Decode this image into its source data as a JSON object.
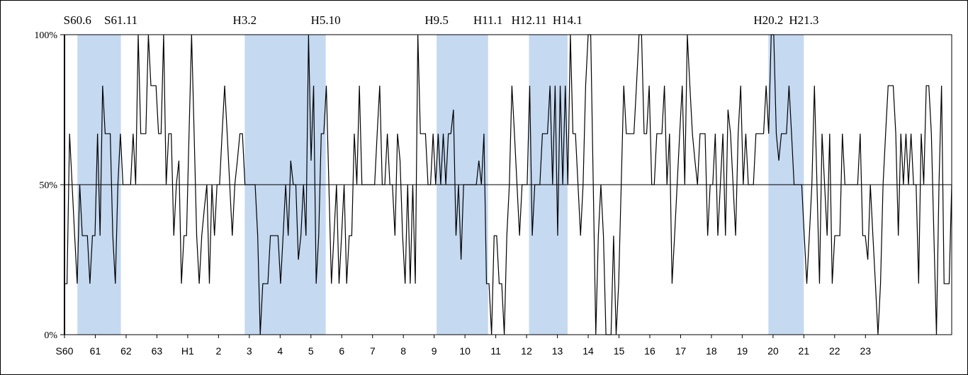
{
  "chart_data": {
    "type": "line",
    "title": "",
    "xlabel": "",
    "ylabel": "",
    "ylim": [
      0,
      100
    ],
    "y_ticks": [
      "0%",
      "50%",
      "100%"
    ],
    "x_ticks": [
      "S60",
      "61",
      "62",
      "63",
      "H1",
      "2",
      "3",
      "4",
      "5",
      "6",
      "7",
      "8",
      "9",
      "10",
      "11",
      "12",
      "13",
      "14",
      "15",
      "16",
      "17",
      "18",
      "19",
      "20",
      "21",
      "22",
      "23"
    ],
    "x_range": [
      0,
      28.8
    ],
    "baseline": 50,
    "grid": false,
    "legend": "none",
    "shaded_periods": [
      {
        "start_label": "S60.6",
        "end_label": "S61.11",
        "start": 0.42,
        "end": 1.83
      },
      {
        "start_label": "H3.2",
        "end_label": "H5.10",
        "start": 5.85,
        "end": 8.48
      },
      {
        "start_label": "H9.5",
        "end_label": "H11.1",
        "start": 12.08,
        "end": 13.75
      },
      {
        "start_label": "H12.11",
        "end_label": "H14.1",
        "start": 15.08,
        "end": 16.33
      },
      {
        "start_label": "H20.2",
        "end_label": "H21.3",
        "start": 22.85,
        "end": 24.0
      }
    ],
    "colors": {
      "shade": "#c5d9f1",
      "line": "#000000"
    },
    "series": [
      {
        "values": [
          17,
          17,
          67,
          50,
          33,
          17,
          50,
          33,
          33,
          33,
          17,
          33,
          33,
          67,
          33,
          83,
          67,
          67,
          67,
          33,
          17,
          50,
          67,
          50,
          50,
          50,
          50,
          67,
          50,
          100,
          67,
          67,
          67,
          100,
          83,
          83,
          83,
          67,
          67,
          100,
          50,
          67,
          67,
          33,
          50,
          58,
          17,
          33,
          33,
          67,
          100,
          67,
          33,
          17,
          33,
          42,
          50,
          17,
          50,
          33,
          50,
          50,
          67,
          83,
          67,
          50,
          33,
          50,
          58,
          67,
          67,
          50,
          50,
          50,
          50,
          50,
          33,
          0,
          17,
          17,
          17,
          33,
          33,
          33,
          33,
          17,
          33,
          50,
          33,
          58,
          50,
          50,
          25,
          33,
          50,
          33,
          100,
          58,
          83,
          17,
          33,
          67,
          67,
          83,
          50,
          17,
          33,
          50,
          17,
          33,
          50,
          17,
          33,
          33,
          67,
          50,
          83,
          50,
          50,
          50,
          50,
          50,
          50,
          67,
          83,
          50,
          50,
          67,
          50,
          50,
          33,
          67,
          58,
          33,
          17,
          50,
          17,
          50,
          17,
          100,
          67,
          67,
          67,
          50,
          50,
          67,
          50,
          67,
          50,
          67,
          50,
          67,
          67,
          75,
          33,
          50,
          25,
          50,
          50,
          50,
          50,
          50,
          50,
          58,
          50,
          67,
          17,
          17,
          0,
          33,
          33,
          17,
          17,
          0,
          33,
          50,
          83,
          67,
          50,
          33,
          50,
          50,
          50,
          83,
          33,
          50,
          50,
          50,
          67,
          67,
          67,
          83,
          50,
          83,
          33,
          83,
          50,
          83,
          50,
          100,
          67,
          67,
          50,
          33,
          50,
          83,
          100,
          100,
          50,
          0,
          33,
          50,
          33,
          0,
          0,
          0,
          33,
          0,
          17,
          50,
          83,
          67,
          67,
          67,
          67,
          83,
          100,
          100,
          67,
          67,
          83,
          50,
          50,
          67,
          67,
          67,
          83,
          50,
          67,
          17,
          33,
          50,
          67,
          83,
          50,
          100,
          83,
          67,
          58,
          50,
          67,
          67,
          67,
          33,
          50,
          50,
          67,
          33,
          50,
          67,
          33,
          75,
          67,
          50,
          33,
          67,
          83,
          50,
          67,
          50,
          50,
          50,
          67,
          67,
          67,
          67,
          83,
          67,
          100,
          100,
          67,
          58,
          67,
          67,
          67,
          83,
          67,
          50,
          50,
          50,
          50,
          33,
          17,
          33,
          50,
          83,
          50,
          17,
          67,
          50,
          33,
          67,
          17,
          33,
          33,
          33,
          67,
          50,
          50,
          50,
          50,
          50,
          50,
          67,
          33,
          33,
          25,
          50,
          33,
          17,
          0,
          17,
          50,
          67,
          83,
          83,
          83,
          67,
          33,
          67,
          50,
          67,
          50,
          67,
          50,
          50,
          17,
          67,
          50,
          83,
          83,
          67,
          33,
          0,
          50,
          83,
          17,
          17,
          17,
          50
        ]
      }
    ]
  }
}
